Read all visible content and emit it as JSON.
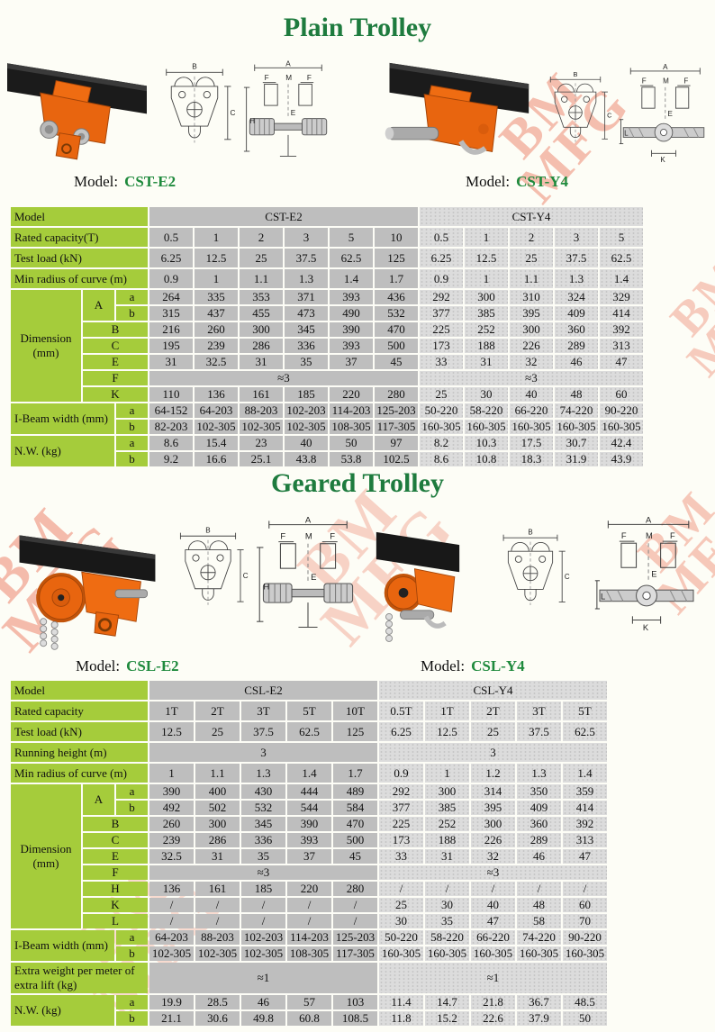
{
  "page": {
    "background": "#FDFDF6",
    "title_color": "#1E7B3E",
    "model_name_color": "#1F8A3D",
    "green_cell_color": "#A5CC3B",
    "gray_e2_color": "#BEBEBE",
    "gray_y4_color": "#DCDCDC",
    "trolley_orange": "#E8650F",
    "watermark_color": "#E85A3C"
  },
  "watermark": {
    "lines": [
      "BM",
      "MFG"
    ]
  },
  "sections": [
    {
      "title": "Plain Trolley",
      "models": [
        {
          "prefix": "Model:",
          "name": "CST-E2"
        },
        {
          "prefix": "Model:",
          "name": "CST-Y4"
        }
      ]
    },
    {
      "title": "Geared Trolley",
      "models": [
        {
          "prefix": "Model:",
          "name": "CSL-E2"
        },
        {
          "prefix": "Model:",
          "name": "CSL-Y4"
        }
      ]
    }
  ],
  "figures": {
    "cst_e2": {
      "front": [
        "B",
        "C"
      ],
      "side": [
        "A",
        "F",
        "M",
        "F",
        "E",
        "H"
      ]
    },
    "cst_y4": {
      "front": [
        "B",
        "C"
      ],
      "side": [
        "A",
        "F",
        "M",
        "F",
        "E",
        "K",
        "L"
      ]
    },
    "csl_e2": {
      "front": [
        "B",
        "C"
      ],
      "side": [
        "A",
        "F",
        "M",
        "F",
        "E",
        "H"
      ]
    },
    "csl_y4": {
      "front": [
        "B",
        "C"
      ],
      "side": [
        "A",
        "F",
        "M",
        "F",
        "E",
        "K",
        "L"
      ]
    }
  },
  "tables": [
    {
      "e2_count": 6,
      "col_count": 11,
      "data_col_width": 48,
      "rows": [
        {
          "t": "span",
          "label": "Model",
          "groups": [
            [
              "CST-E2",
              6
            ],
            [
              "CST-Y4",
              5
            ]
          ]
        },
        {
          "t": "simple",
          "label": "Rated capacity(T)",
          "values": [
            "0.5",
            "1",
            "2",
            "3",
            "5",
            "10",
            "0.5",
            "1",
            "2",
            "3",
            "5"
          ]
        },
        {
          "t": "simple",
          "label": "Test load (kN)",
          "values": [
            "6.25",
            "12.5",
            "25",
            "37.5",
            "62.5",
            "125",
            "6.25",
            "12.5",
            "25",
            "37.5",
            "62.5"
          ]
        },
        {
          "t": "simple",
          "label": "Min radius of curve (m)",
          "values": [
            "0.9",
            "1",
            "1.1",
            "1.3",
            "1.4",
            "1.7",
            "0.9",
            "1",
            "1.1",
            "1.3",
            "1.4"
          ]
        },
        {
          "t": "dimfirst",
          "label": "Dimension (mm)",
          "rowspan": 7,
          "letter": "A",
          "sub": "a",
          "values": [
            "264",
            "335",
            "353",
            "371",
            "393",
            "436",
            "292",
            "300",
            "310",
            "324",
            "329"
          ]
        },
        {
          "t": "sub",
          "sub": "b",
          "values": [
            "315",
            "437",
            "455",
            "473",
            "490",
            "532",
            "377",
            "385",
            "395",
            "409",
            "414"
          ]
        },
        {
          "t": "dim",
          "letter": "B",
          "values": [
            "216",
            "260",
            "300",
            "345",
            "390",
            "470",
            "225",
            "252",
            "300",
            "360",
            "392"
          ]
        },
        {
          "t": "dim",
          "letter": "C",
          "values": [
            "195",
            "239",
            "286",
            "336",
            "393",
            "500",
            "173",
            "188",
            "226",
            "289",
            "313"
          ]
        },
        {
          "t": "dim",
          "letter": "E",
          "values": [
            "31",
            "32.5",
            "31",
            "35",
            "37",
            "45",
            "33",
            "31",
            "32",
            "46",
            "47"
          ]
        },
        {
          "t": "dimspan",
          "letter": "F",
          "groups": [
            [
              "≈3",
              6
            ],
            [
              "≈3",
              5
            ]
          ]
        },
        {
          "t": "dim",
          "letter": "K",
          "values": [
            "110",
            "136",
            "161",
            "185",
            "220",
            "280",
            "25",
            "30",
            "40",
            "48",
            "60"
          ]
        },
        {
          "t": "subfirst",
          "label": "I-Beam width (mm)",
          "sub": "a",
          "values": [
            "64-152",
            "64-203",
            "88-203",
            "102-203",
            "114-203",
            "125-203",
            "50-220",
            "58-220",
            "66-220",
            "74-220",
            "90-220"
          ]
        },
        {
          "t": "sub",
          "sub": "b",
          "values": [
            "82-203",
            "102-305",
            "102-305",
            "102-305",
            "108-305",
            "117-305",
            "160-305",
            "160-305",
            "160-305",
            "160-305",
            "160-305"
          ]
        },
        {
          "t": "subfirst",
          "label": "N.W. (kg)",
          "sub": "a",
          "values": [
            "8.6",
            "15.4",
            "23",
            "40",
            "50",
            "97",
            "8.2",
            "10.3",
            "17.5",
            "30.7",
            "42.4"
          ]
        },
        {
          "t": "sub",
          "sub": "b",
          "values": [
            "9.2",
            "16.6",
            "25.1",
            "43.8",
            "53.8",
            "102.5",
            "8.6",
            "10.8",
            "18.3",
            "31.9",
            "43.9"
          ]
        }
      ]
    },
    {
      "e2_count": 5,
      "col_count": 10,
      "data_col_width": 49,
      "rows": [
        {
          "t": "span",
          "label": "Model",
          "groups": [
            [
              "CSL-E2",
              5
            ],
            [
              "CSL-Y4",
              5
            ]
          ]
        },
        {
          "t": "simple",
          "label": "Rated capacity",
          "values": [
            "1T",
            "2T",
            "3T",
            "5T",
            "10T",
            "0.5T",
            "1T",
            "2T",
            "3T",
            "5T"
          ]
        },
        {
          "t": "simple",
          "label": "Test load (kN)",
          "values": [
            "12.5",
            "25",
            "37.5",
            "62.5",
            "125",
            "6.25",
            "12.5",
            "25",
            "37.5",
            "62.5"
          ]
        },
        {
          "t": "span",
          "label": "Running height (m)",
          "groups": [
            [
              "3",
              5
            ],
            [
              "3",
              5
            ]
          ]
        },
        {
          "t": "simple",
          "label": "Min radius of curve (m)",
          "values": [
            "1",
            "1.1",
            "1.3",
            "1.4",
            "1.7",
            "0.9",
            "1",
            "1.2",
            "1.3",
            "1.4"
          ]
        },
        {
          "t": "dimfirst",
          "label": "Dimension (mm)",
          "rowspan": 9,
          "letter": "A",
          "sub": "a",
          "values": [
            "390",
            "400",
            "430",
            "444",
            "489",
            "292",
            "300",
            "314",
            "350",
            "359"
          ]
        },
        {
          "t": "sub",
          "sub": "b",
          "values": [
            "492",
            "502",
            "532",
            "544",
            "584",
            "377",
            "385",
            "395",
            "409",
            "414"
          ]
        },
        {
          "t": "dim",
          "letter": "B",
          "values": [
            "260",
            "300",
            "345",
            "390",
            "470",
            "225",
            "252",
            "300",
            "360",
            "392"
          ]
        },
        {
          "t": "dim",
          "letter": "C",
          "values": [
            "239",
            "286",
            "336",
            "393",
            "500",
            "173",
            "188",
            "226",
            "289",
            "313"
          ]
        },
        {
          "t": "dim",
          "letter": "E",
          "values": [
            "32.5",
            "31",
            "35",
            "37",
            "45",
            "33",
            "31",
            "32",
            "46",
            "47"
          ]
        },
        {
          "t": "dimspan",
          "letter": "F",
          "groups": [
            [
              "≈3",
              5
            ],
            [
              "≈3",
              5
            ]
          ]
        },
        {
          "t": "dim",
          "letter": "H",
          "values": [
            "136",
            "161",
            "185",
            "220",
            "280",
            "/",
            "/",
            "/",
            "/",
            "/"
          ]
        },
        {
          "t": "dim",
          "letter": "K",
          "values": [
            "/",
            "/",
            "/",
            "/",
            "/",
            "25",
            "30",
            "40",
            "48",
            "60"
          ]
        },
        {
          "t": "dim",
          "letter": "L",
          "values": [
            "/",
            "/",
            "/",
            "/",
            "/",
            "30",
            "35",
            "47",
            "58",
            "70"
          ]
        },
        {
          "t": "subfirst",
          "label": "I-Beam width (mm)",
          "sub": "a",
          "values": [
            "64-203",
            "88-203",
            "102-203",
            "114-203",
            "125-203",
            "50-220",
            "58-220",
            "66-220",
            "74-220",
            "90-220"
          ]
        },
        {
          "t": "sub",
          "sub": "b",
          "values": [
            "102-305",
            "102-305",
            "102-305",
            "108-305",
            "117-305",
            "160-305",
            "160-305",
            "160-305",
            "160-305",
            "160-305"
          ]
        },
        {
          "t": "span",
          "label": "Extra weight per meter of extra lift (kg)",
          "groups": [
            [
              "≈1",
              5
            ],
            [
              "≈1",
              5
            ]
          ]
        },
        {
          "t": "subfirst",
          "label": "N.W. (kg)",
          "sub": "a",
          "values": [
            "19.9",
            "28.5",
            "46",
            "57",
            "103",
            "11.4",
            "14.7",
            "21.8",
            "36.7",
            "48.5"
          ]
        },
        {
          "t": "sub",
          "sub": "b",
          "values": [
            "21.1",
            "30.6",
            "49.8",
            "60.8",
            "108.5",
            "11.8",
            "15.2",
            "22.6",
            "37.9",
            "50"
          ]
        }
      ]
    }
  ]
}
